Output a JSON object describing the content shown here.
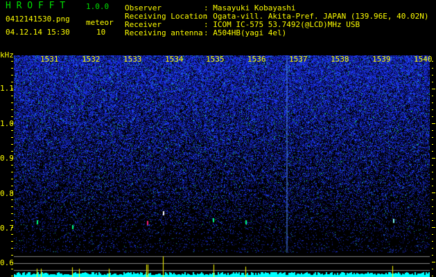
{
  "header": {
    "app_title": "H R O F F T",
    "version": "1.0.0",
    "filename": "0412141530.png",
    "datetime": "04.12.14 15:30",
    "meteor_label": "meteor",
    "meteor_count": "10"
  },
  "info": [
    {
      "label": "Observer",
      "value": ": Masayuki Kobayashi"
    },
    {
      "label": "Receiving Location",
      "value": ": Ogata-vill. Akita-Pref. JAPAN (139.96E, 40.02N)"
    },
    {
      "label": "Receiver",
      "value": ": ICOM IC-575 53.7492(@LCD)MHz USB"
    },
    {
      "label": "Receiving antenna",
      "value": ": A504HB(yagi 4el)"
    }
  ],
  "spectrogram": {
    "y_unit": "kHz",
    "y_ticks": [
      "1.1",
      "1.0",
      "0.9",
      "0.8",
      "0.7",
      "0.6"
    ],
    "time_labels": [
      "1531",
      "1532",
      "1533",
      "1534",
      "1535",
      "1536",
      "1537",
      "1538",
      "1539",
      "1540"
    ],
    "colors": {
      "text": "#ffff00",
      "title": "#00e000",
      "noise": "#1a2cff",
      "histogram": "#00ffff"
    }
  }
}
